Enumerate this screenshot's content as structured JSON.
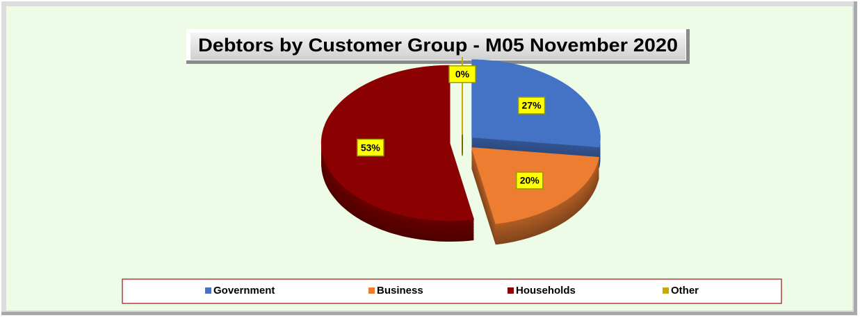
{
  "chart_data": {
    "type": "pie",
    "title": "Debtors by Customer Group - M05 November 2020",
    "categories": [
      "Government",
      "Business",
      "Households",
      "Other"
    ],
    "values": [
      27,
      20,
      53,
      0
    ],
    "value_labels": [
      "27%",
      "20%",
      "53%",
      "0%"
    ],
    "colors": [
      "#4472c4",
      "#ed7d31",
      "#8b0000",
      "#c9a900"
    ],
    "legend": "bottom"
  }
}
